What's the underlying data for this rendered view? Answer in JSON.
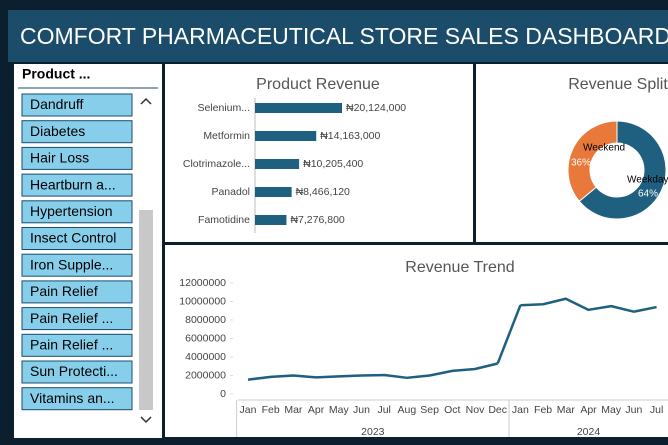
{
  "header": {
    "title": "COMFORT PHARMACEUTICAL STORE SALES DASHBOARD"
  },
  "slicer": {
    "title": "Product ...",
    "items": [
      "Dandruff",
      "Diabetes",
      "Hair Loss",
      "Heartburn a...",
      "Hypertension",
      "Insect Control",
      "Iron Supple...",
      "Pain Relief",
      "Pain Relief ...",
      "Pain Relief ...",
      "Sun Protecti...",
      "Vitamins an..."
    ]
  },
  "chart_data": [
    {
      "type": "bar",
      "orientation": "horizontal",
      "title": "Product Revenue",
      "categories": [
        "Selenium...",
        "Metformin",
        "Clotrimazole...",
        "Panadol",
        "Famotidine"
      ],
      "values": [
        20124000,
        14163000,
        10205400,
        8466120,
        7276800
      ],
      "value_labels": [
        "₦20,124,000",
        "₦14,163,000",
        "₦10,205,400",
        "₦8,466,120",
        "₦7,276,800"
      ],
      "color": "#1f5f80"
    },
    {
      "type": "donut",
      "title": "Revenue Split",
      "categories": [
        "Weekday",
        "Weekend"
      ],
      "values": [
        64,
        36
      ],
      "value_labels": [
        "64%",
        "36%"
      ],
      "colors": [
        "#1f5f80",
        "#e8793a"
      ]
    },
    {
      "type": "line",
      "title": "Revenue Trend",
      "color": "#1f5f80",
      "x_groups": [
        {
          "label": "2023",
          "categories": [
            "Jan",
            "Feb",
            "Mar",
            "Apr",
            "May",
            "Jun",
            "Jul",
            "Aug",
            "Sep",
            "Oct",
            "Nov",
            "Dec"
          ],
          "values": [
            1550000,
            1850000,
            2000000,
            1800000,
            1900000,
            2000000,
            2050000,
            1750000,
            2000000,
            2500000,
            2700000,
            3300000
          ]
        },
        {
          "label": "2024",
          "categories": [
            "Jan",
            "Feb",
            "Mar",
            "Apr",
            "May",
            "Jun",
            "Jul"
          ],
          "values": [
            9600000,
            9700000,
            10300000,
            9100000,
            9500000,
            8900000,
            9400000
          ]
        }
      ],
      "ylim": [
        0,
        12000000
      ],
      "yticks": [
        0,
        2000000,
        4000000,
        6000000,
        8000000,
        10000000,
        12000000
      ]
    }
  ]
}
